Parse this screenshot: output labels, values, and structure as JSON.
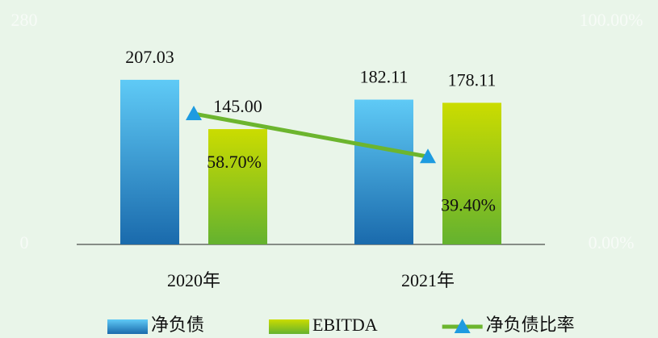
{
  "chart_data": {
    "type": "bar",
    "categories": [
      "2020年",
      "2021年"
    ],
    "series": [
      {
        "name": "净负债",
        "type": "bar",
        "color": "#1a70b0",
        "gradient": [
          "#5fcaf6",
          "#1a6aac"
        ],
        "values": [
          207.03,
          182.11
        ],
        "value_labels": [
          "207.03",
          "182.11"
        ]
      },
      {
        "name": "EBITDA",
        "type": "bar",
        "color": "#7ab82a",
        "gradient": [
          "#cbdc00",
          "#64b22f"
        ],
        "values": [
          145.0,
          178.11
        ],
        "value_labels": [
          "145.00",
          "178.11"
        ]
      },
      {
        "name": "净负债比率",
        "type": "line",
        "axis": "y2",
        "color": "#6cb52e",
        "marker_color": "#1e9be0",
        "values": [
          58.7,
          39.4
        ],
        "value_labels": [
          "58.70%",
          "39.40%"
        ]
      }
    ],
    "ylim": [
      0,
      280
    ],
    "yticks": [
      0,
      280
    ],
    "y2lim": [
      0,
      100
    ],
    "y2ticks": [
      {
        "value": 0,
        "label": "0.00%"
      },
      {
        "value": 100,
        "label": "100.00%"
      }
    ],
    "legend": "bottom"
  }
}
